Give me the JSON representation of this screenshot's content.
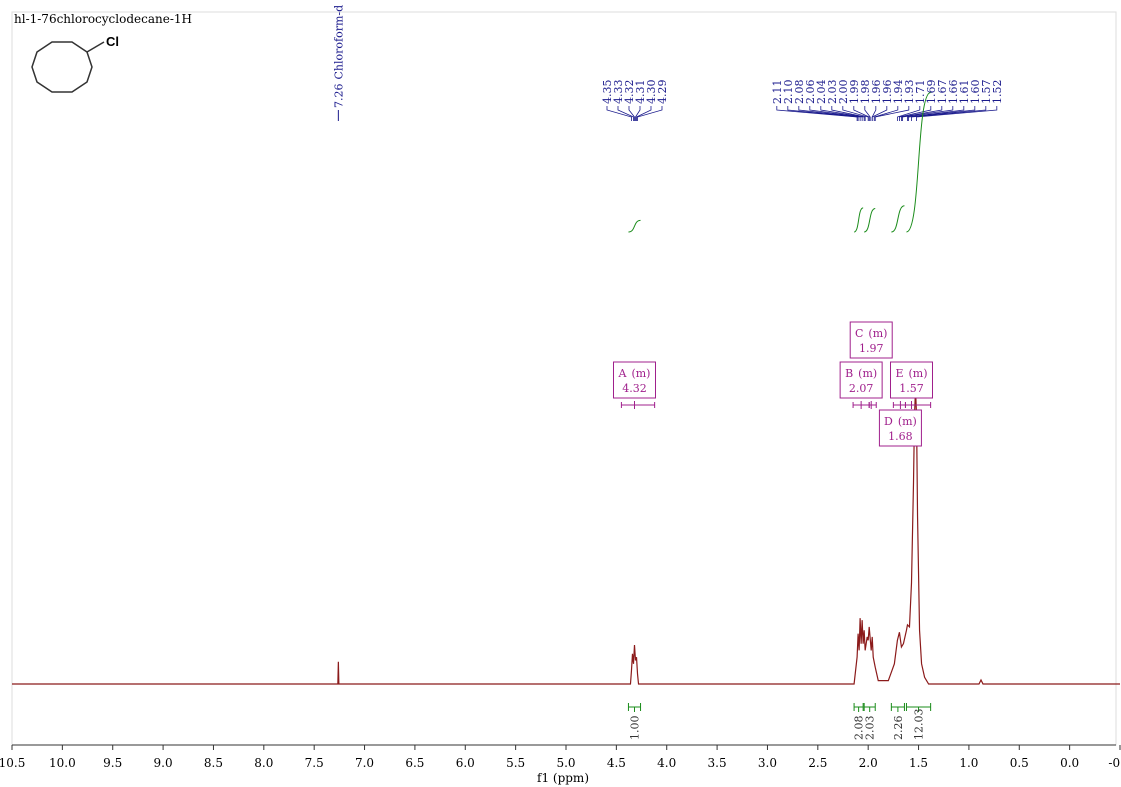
{
  "title": "hl-1-76chlorocyclodecane-1H",
  "structure_label": "Cl",
  "chart_data": {
    "type": "nmr",
    "x_label": "f1 (ppm)",
    "xlim": [
      10.5,
      -0.5
    ],
    "xticks": [
      {
        "value": 10.5,
        "label": "10.5"
      },
      {
        "value": 10,
        "label": "10.0"
      },
      9.5,
      {
        "value": 9,
        "label": "9.0"
      },
      8.5,
      {
        "value": 8,
        "label": "8.0"
      },
      7.5,
      {
        "value": 7,
        "label": "7.0"
      },
      6.5,
      {
        "value": 6,
        "label": "6.0"
      },
      5.5,
      {
        "value": 5,
        "label": "5.0"
      },
      4.5,
      {
        "value": 4,
        "label": "4.0"
      },
      3.5,
      {
        "value": 3,
        "label": "3.0"
      },
      2.5,
      {
        "value": 2,
        "label": "2.0"
      },
      1.5,
      {
        "value": 1,
        "label": "1.0"
      },
      0.5,
      {
        "value": 0,
        "label": "0.0"
      },
      -0.5
    ],
    "ylim": [
      0,
      100
    ],
    "color": "#8b1a1a",
    "spectrum": {
      "x": [
        10.5,
        7.28,
        7.265,
        7.26,
        7.255,
        4.36,
        4.35,
        4.34,
        4.33,
        4.32,
        4.31,
        4.3,
        4.29,
        4.28,
        2.14,
        2.11,
        2.1,
        2.09,
        2.08,
        2.07,
        2.06,
        2.05,
        2.04,
        2.03,
        2.01,
        2.0,
        1.99,
        1.97,
        1.96,
        1.95,
        1.93,
        1.9,
        1.8,
        1.74,
        1.71,
        1.69,
        1.67,
        1.65,
        1.62,
        1.61,
        1.59,
        1.57,
        1.55,
        1.54,
        1.53,
        1.52,
        1.51,
        1.49,
        1.47,
        1.44,
        1.4,
        0.9,
        0.88,
        0.86,
        -0.5
      ],
      "y": [
        0,
        0,
        0,
        3.3,
        0,
        0,
        2,
        4.5,
        3,
        5.8,
        3.5,
        4,
        1.5,
        0,
        0,
        4,
        7.5,
        5,
        9.8,
        6,
        9.5,
        6,
        8,
        5,
        7,
        6.5,
        8.5,
        5,
        7,
        4,
        2.5,
        0.5,
        0.5,
        3,
        6.5,
        7.7,
        5.5,
        6,
        8,
        8.8,
        8.5,
        15,
        30,
        40,
        43.8,
        40,
        25,
        8,
        3,
        1,
        0,
        0,
        0.6,
        0,
        0
      ]
    },
    "solvent_peak": {
      "value": 7.26,
      "label": "7.26",
      "name": "Chloroform-d"
    },
    "peak_groups": [
      [
        {
          "value": 4.35,
          "label": "4.35"
        },
        {
          "value": 4.33,
          "label": "4.33"
        },
        {
          "value": 4.32,
          "label": "4.32"
        },
        {
          "value": 4.31,
          "label": "4.31"
        },
        {
          "value": 4.3,
          "label": "4.30"
        },
        {
          "value": 4.29,
          "label": "4.29"
        }
      ],
      [
        {
          "value": 2.11,
          "label": "2.11"
        },
        {
          "value": 2.1,
          "label": "2.10"
        },
        {
          "value": 2.08,
          "label": "2.08"
        },
        {
          "value": 2.06,
          "label": "2.06"
        },
        {
          "value": 2.04,
          "label": "2.04"
        },
        {
          "value": 2.03,
          "label": "2.03"
        },
        {
          "value": 2,
          "label": "2.00"
        },
        {
          "value": 1.99,
          "label": "1.99"
        },
        {
          "value": 1.98,
          "label": "1.98"
        },
        {
          "value": 1.96,
          "label": "1.96"
        },
        {
          "value": 1.96,
          "label": "1.96"
        },
        {
          "value": 1.94,
          "label": "1.94"
        },
        {
          "value": 1.93,
          "label": "1.93"
        },
        {
          "value": 1.71,
          "label": "1.71"
        },
        {
          "value": 1.69,
          "label": "1.69"
        },
        {
          "value": 1.67,
          "label": "1.67"
        },
        {
          "value": 1.66,
          "label": "1.66"
        },
        {
          "value": 1.61,
          "label": "1.61"
        },
        {
          "value": 1.6,
          "label": "1.60"
        },
        {
          "value": 1.57,
          "label": "1.57"
        },
        {
          "value": 1.52,
          "label": "1.52"
        }
      ]
    ],
    "multiplets": [
      {
        "name": "A",
        "mult": "(m)",
        "shift": 4.32,
        "range": [
          4.45,
          4.12
        ]
      },
      {
        "name": "B",
        "mult": "(m)",
        "shift": 2.07,
        "range": [
          2.15,
          1.99
        ]
      },
      {
        "name": "C",
        "mult": "(m)",
        "shift": 1.97,
        "range": [
          1.99,
          1.92
        ]
      },
      {
        "name": "D",
        "mult": "(m)",
        "shift": 1.68,
        "range": [
          1.75,
          1.63
        ]
      },
      {
        "name": "E",
        "mult": "(m)",
        "shift": 1.57,
        "range": [
          1.63,
          1.38
        ]
      }
    ],
    "integrals": [
      {
        "range": [
          4.38,
          4.26
        ],
        "value": 1,
        "label": "1.00"
      },
      {
        "range": [
          2.14,
          2.05
        ],
        "value": 2.08,
        "label": "2.08"
      },
      {
        "range": [
          2.04,
          1.93
        ],
        "value": 2.03,
        "label": "2.03"
      },
      {
        "range": [
          1.77,
          1.64
        ],
        "value": 2.26,
        "label": "2.26"
      },
      {
        "range": [
          1.62,
          1.38
        ],
        "value": 12.03,
        "label": "12.03"
      }
    ]
  }
}
